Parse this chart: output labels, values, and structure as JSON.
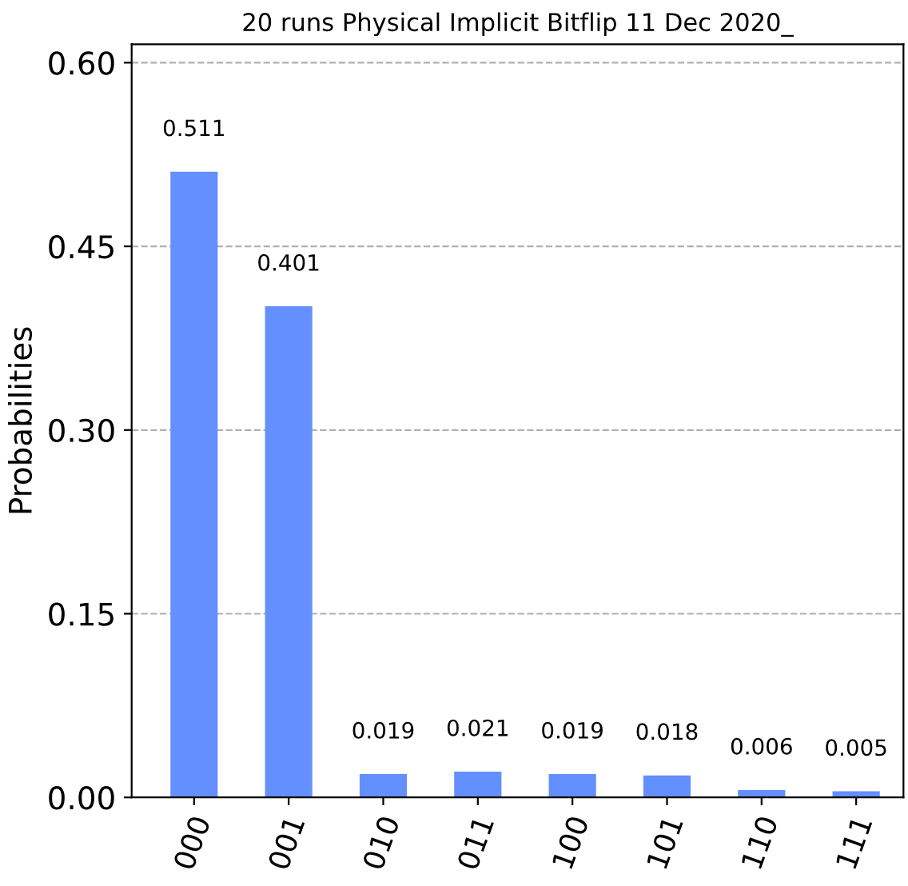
{
  "chart_data": {
    "type": "bar",
    "title": "20 runs Physical Implicit Bitflip 11 Dec 2020_",
    "ylabel": "Probabilities",
    "categories": [
      "000",
      "001",
      "010",
      "011",
      "100",
      "101",
      "110",
      "111"
    ],
    "values": [
      0.511,
      0.401,
      0.019,
      0.021,
      0.019,
      0.018,
      0.006,
      0.005
    ],
    "color": "#648fff",
    "data_labels": true,
    "ylim": [
      0,
      0.615
    ],
    "yticks": [
      {
        "value": 0,
        "label": "0.00"
      },
      {
        "value": 0.15,
        "label": "0.15"
      },
      {
        "value": 0.3,
        "label": "0.30"
      },
      {
        "value": 0.45,
        "label": "0.45"
      },
      {
        "value": 0.6,
        "label": "0.60"
      }
    ],
    "grid": "y",
    "line_style": "dashed"
  }
}
